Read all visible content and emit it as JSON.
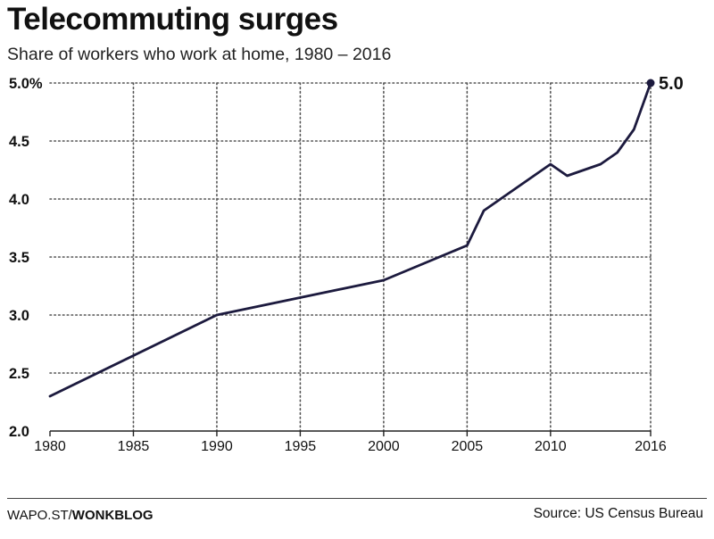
{
  "title": "Telecommuting surges",
  "subtitle": "Share of workers who work at home, 1980 – 2016",
  "footer": {
    "source_prefix": "WAPO.ST/",
    "source_brand": "WONKBLOG",
    "credit": "Source: US Census Bureau"
  },
  "colors": {
    "line": "#1c1a3e",
    "grid": "#555555",
    "text": "#111111"
  },
  "chart_data": {
    "type": "line",
    "title": "Telecommuting surges",
    "subtitle": "Share of workers who work at home, 1980 – 2016",
    "xlabel": "",
    "ylabel": "",
    "x": [
      1980,
      1990,
      2000,
      2005,
      2006,
      2010,
      2011,
      2013,
      2014,
      2015,
      2016
    ],
    "values": [
      2.3,
      3.0,
      3.3,
      3.6,
      3.9,
      4.3,
      4.2,
      4.3,
      4.4,
      4.6,
      5.0
    ],
    "xlim": [
      1980,
      2016
    ],
    "ylim": [
      2.0,
      5.0
    ],
    "x_ticks": [
      1980,
      1985,
      1990,
      1995,
      2000,
      2005,
      2010,
      2016
    ],
    "x_tick_labels": [
      "1980",
      "1985",
      "1990",
      "1995",
      "2000",
      "2005",
      "2010",
      "2016"
    ],
    "y_ticks": [
      2.0,
      2.5,
      3.0,
      3.5,
      4.0,
      4.5,
      5.0
    ],
    "y_tick_labels": [
      "2.0",
      "2.5",
      "3.0",
      "3.5",
      "4.0",
      "4.5",
      "5.0%"
    ],
    "end_label": "5.0",
    "grid": true
  }
}
